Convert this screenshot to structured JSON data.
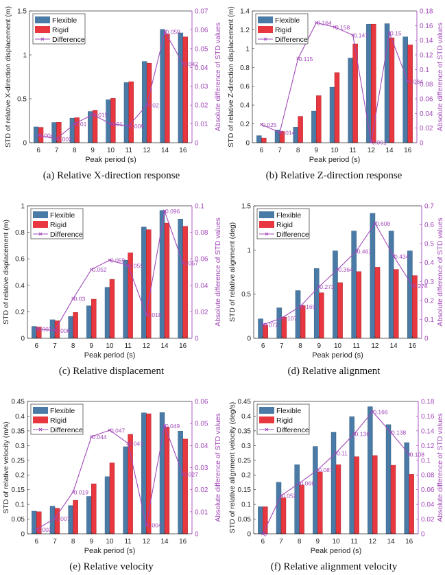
{
  "colors": {
    "flexible": "#4a7ba6",
    "rigid": "#e8373f",
    "difference": "#a148b8",
    "axis": "#333333"
  },
  "legend": {
    "flexible": "Flexible",
    "rigid": "Rigid",
    "difference": "Difference"
  },
  "chart_data": [
    {
      "id": "a",
      "type": "bar",
      "caption": "(a) Relative X-direction response",
      "xlabel": "Peak period (s)",
      "ylabel": "STD of relative X-direction displacement (m)",
      "y2label": "Absolute difference of STD values",
      "categories": [
        "6",
        "7",
        "8",
        "9",
        "10",
        "11",
        "12",
        "14",
        "16"
      ],
      "ylim": [
        0,
        1.5
      ],
      "yticks": [
        "0",
        "0.5",
        "1",
        "1.5"
      ],
      "ytick_values": [
        0,
        0.5,
        1,
        1.5
      ],
      "y2lim": [
        0,
        0.07
      ],
      "y2ticks": [
        "0",
        "0.01",
        "0.02",
        "0.03",
        "0.04",
        "0.05",
        "0.06",
        "0.07"
      ],
      "y2tick_values": [
        0,
        0.01,
        0.02,
        0.03,
        0.04,
        0.05,
        0.06,
        0.07
      ],
      "series": [
        {
          "name": "Flexible",
          "values": [
            0.18,
            0.23,
            0.28,
            0.355,
            0.49,
            0.685,
            0.925,
            1.29,
            1.25
          ]
        },
        {
          "name": "Rigid",
          "values": [
            0.175,
            0.232,
            0.285,
            0.37,
            0.505,
            0.695,
            0.905,
            1.235,
            1.205
          ]
        },
        {
          "name": "Difference",
          "axis": "right",
          "values": [
            0.004,
            0.002,
            0.01,
            0.015,
            0.01,
            0.009,
            0.02,
            0.059,
            0.042
          ],
          "labels": [
            "0.004",
            "0.002",
            "0.01",
            "0.015",
            "0.01",
            "0.009",
            "0.02",
            "0.059",
            "0.042"
          ]
        }
      ],
      "legend_position": "top-left"
    },
    {
      "id": "b",
      "type": "bar",
      "caption": "(b) Relative Z-direction response",
      "xlabel": "Peak period (s)",
      "ylabel": "STD of relative Z-direction displacement (m)",
      "y2label": "Absolute difference of STD values",
      "categories": [
        "6",
        "7",
        "8",
        "9",
        "10",
        "11",
        "12",
        "14",
        "16"
      ],
      "ylim": [
        0,
        1.4
      ],
      "yticks": [
        "0",
        "0.2",
        "0.4",
        "0.6",
        "0.8",
        "1",
        "1.2",
        "1.4"
      ],
      "ytick_values": [
        0,
        0.2,
        0.4,
        0.6,
        0.8,
        1,
        1.2,
        1.4
      ],
      "y2lim": [
        0,
        0.18
      ],
      "y2ticks": [
        "0",
        "0.02",
        "0.04",
        "0.06",
        "0.08",
        "0.1",
        "0.12",
        "0.14",
        "0.16",
        "0.18"
      ],
      "y2tick_values": [
        0,
        0.02,
        0.04,
        0.06,
        0.08,
        0.1,
        0.12,
        0.14,
        0.16,
        0.18
      ],
      "series": [
        {
          "name": "Flexible",
          "values": [
            0.075,
            0.135,
            0.165,
            0.335,
            0.59,
            0.9,
            1.26,
            1.265,
            1.125
          ]
        },
        {
          "name": "Rigid",
          "values": [
            0.05,
            0.12,
            0.28,
            0.5,
            0.745,
            1.05,
            1.26,
            1.115,
            1.04
          ]
        },
        {
          "name": "Difference",
          "axis": "right",
          "values": [
            0.025,
            0.014,
            0.115,
            0.164,
            0.158,
            0.147,
            0.001,
            0.15,
            0.084
          ],
          "labels": [
            "0.025",
            "0.014",
            "0.115",
            "0.164",
            "0.158",
            "0.147",
            "0.001",
            "0.15",
            "0.084"
          ]
        }
      ],
      "legend_position": "top-left"
    },
    {
      "id": "c",
      "type": "bar",
      "caption": "(c) Relative displacement",
      "xlabel": "Peak period (s)",
      "ylabel": "STD of relative displacement (m)",
      "y2label": "Absolute difference of STD values",
      "categories": [
        "6",
        "7",
        "8",
        "9",
        "10",
        "11",
        "12",
        "14",
        "16"
      ],
      "ylim": [
        0,
        1
      ],
      "yticks": [
        "0",
        "0.2",
        "0.4",
        "0.6",
        "0.8",
        "1"
      ],
      "ytick_values": [
        0,
        0.2,
        0.4,
        0.6,
        0.8,
        1
      ],
      "y2lim": [
        0,
        0.1
      ],
      "y2ticks": [
        "0",
        "0.02",
        "0.04",
        "0.06",
        "0.08",
        "0.1"
      ],
      "y2tick_values": [
        0,
        0.02,
        0.04,
        0.06,
        0.08,
        0.1
      ],
      "series": [
        {
          "name": "Flexible",
          "values": [
            0.09,
            0.14,
            0.165,
            0.245,
            0.385,
            0.59,
            0.84,
            0.965,
            0.9
          ]
        },
        {
          "name": "Rigid",
          "values": [
            0.085,
            0.132,
            0.195,
            0.295,
            0.445,
            0.645,
            0.82,
            0.87,
            0.845
          ]
        },
        {
          "name": "Difference",
          "axis": "right",
          "values": [
            0.007,
            0.006,
            0.03,
            0.052,
            0.059,
            0.055,
            0.018,
            0.096,
            0.057
          ],
          "labels": [
            "0.007",
            "0.006",
            "0.03",
            "0.052",
            "0.059",
            "0.055",
            "0.018",
            "0.096",
            "0.057"
          ]
        }
      ],
      "legend_position": "top-left"
    },
    {
      "id": "d",
      "type": "bar",
      "caption": "(d) Relative alignment",
      "xlabel": "Peak period (s)",
      "ylabel": "STD of relative alignment (deg)",
      "y2label": "Absolute difference of STD values",
      "categories": [
        "6",
        "7",
        "8",
        "9",
        "10",
        "11",
        "12",
        "14",
        "16"
      ],
      "ylim": [
        0,
        1.5
      ],
      "yticks": [
        "0",
        "0.5",
        "1",
        "1.5"
      ],
      "ytick_values": [
        0,
        0.5,
        1,
        1.5
      ],
      "y2lim": [
        0,
        0.7
      ],
      "y2ticks": [
        "0",
        "0.1",
        "0.2",
        "0.3",
        "0.4",
        "0.5",
        "0.6",
        "0.7"
      ],
      "y2tick_values": [
        0,
        0.1,
        0.2,
        0.3,
        0.4,
        0.5,
        0.6,
        0.7
      ],
      "series": [
        {
          "name": "Flexible",
          "values": [
            0.22,
            0.345,
            0.54,
            0.79,
            0.99,
            1.215,
            1.415,
            1.215,
            0.99
          ]
        },
        {
          "name": "Rigid",
          "values": [
            0.15,
            0.24,
            0.37,
            0.515,
            0.63,
            0.755,
            0.805,
            0.78,
            0.71
          ]
        },
        {
          "name": "Difference",
          "axis": "right",
          "values": [
            0.072,
            0.107,
            0.169,
            0.273,
            0.364,
            0.461,
            0.608,
            0.434,
            0.278
          ],
          "labels": [
            "0.072",
            "0.107",
            "0.169",
            "0.273",
            "0.364",
            "0.461",
            "0.608",
            "0.434",
            "0.278"
          ]
        }
      ],
      "legend_position": "top-left"
    },
    {
      "id": "e",
      "type": "bar",
      "caption": "(e) Relative velocity",
      "xlabel": "Peak period (s)",
      "ylabel": "STD of relative velocity (m/s)",
      "y2label": "Absolute difference of STD values",
      "categories": [
        "6",
        "7",
        "8",
        "9",
        "10",
        "11",
        "12",
        "14",
        "16"
      ],
      "ylim": [
        0,
        0.45
      ],
      "yticks": [
        "0",
        "0.05",
        "0.1",
        "0.15",
        "0.2",
        "0.25",
        "0.3",
        "0.35",
        "0.4",
        "0.45"
      ],
      "ytick_values": [
        0,
        0.05,
        0.1,
        0.15,
        0.2,
        0.25,
        0.3,
        0.35,
        0.4,
        0.45
      ],
      "y2lim": [
        0,
        0.06
      ],
      "y2ticks": [
        "0",
        "0.01",
        "0.02",
        "0.03",
        "0.04",
        "0.05",
        "0.06"
      ],
      "y2tick_values": [
        0,
        0.01,
        0.02,
        0.03,
        0.04,
        0.05,
        0.06
      ],
      "series": [
        {
          "name": "Flexible",
          "values": [
            0.077,
            0.094,
            0.096,
            0.127,
            0.194,
            0.296,
            0.411,
            0.412,
            0.349
          ]
        },
        {
          "name": "Rigid",
          "values": [
            0.075,
            0.087,
            0.114,
            0.17,
            0.241,
            0.338,
            0.408,
            0.363,
            0.322
          ]
        },
        {
          "name": "Difference",
          "axis": "right",
          "values": [
            0.002,
            0.007,
            0.019,
            0.044,
            0.047,
            0.041,
            0.004,
            0.049,
            0.027
          ],
          "labels": [
            "0.002",
            "0.007",
            "0.019",
            "0.044",
            "0.047",
            "0.041",
            "0.004",
            "0.049",
            "0.027"
          ]
        }
      ],
      "legend_position": "top-left"
    },
    {
      "id": "f",
      "type": "bar",
      "caption": "(f) Relative alignment velocity",
      "xlabel": "Peak period (s)",
      "ylabel": "STD of relative alignment velocity (deg/s)",
      "y2label": "Absolute difference of STD values",
      "categories": [
        "6",
        "7",
        "8",
        "9",
        "10",
        "11",
        "12",
        "14",
        "16"
      ],
      "ylim": [
        0,
        0.45
      ],
      "yticks": [
        "0",
        "0.05",
        "0.1",
        "0.15",
        "0.2",
        "0.25",
        "0.3",
        "0.35",
        "0.4",
        "0.45"
      ],
      "ytick_values": [
        0,
        0.05,
        0.1,
        0.15,
        0.2,
        0.25,
        0.3,
        0.35,
        0.4,
        0.45
      ],
      "y2lim": [
        0,
        0.18
      ],
      "y2ticks": [
        "0",
        "0.02",
        "0.04",
        "0.06",
        "0.08",
        "0.1",
        "0.12",
        "0.14",
        "0.16",
        "0.18"
      ],
      "y2tick_values": [
        0,
        0.02,
        0.04,
        0.06,
        0.08,
        0.1,
        0.12,
        0.14,
        0.16,
        0.18
      ],
      "series": [
        {
          "name": "Flexible",
          "values": [
            0.092,
            0.175,
            0.235,
            0.297,
            0.345,
            0.398,
            0.432,
            0.371,
            0.31
          ]
        },
        {
          "name": "Rigid",
          "values": [
            0.092,
            0.122,
            0.166,
            0.21,
            0.235,
            0.262,
            0.266,
            0.233,
            0.202
          ]
        },
        {
          "name": "Difference",
          "axis": "right",
          "values": [
            0,
            0.052,
            0.069,
            0.087,
            0.11,
            0.136,
            0.166,
            0.138,
            0.108
          ],
          "labels": [
            "0",
            "0.052",
            "0.069",
            "0.087",
            "0.11",
            "0.136",
            "0.166",
            "0.138",
            "0.108"
          ]
        }
      ],
      "legend_position": "top-left"
    }
  ]
}
